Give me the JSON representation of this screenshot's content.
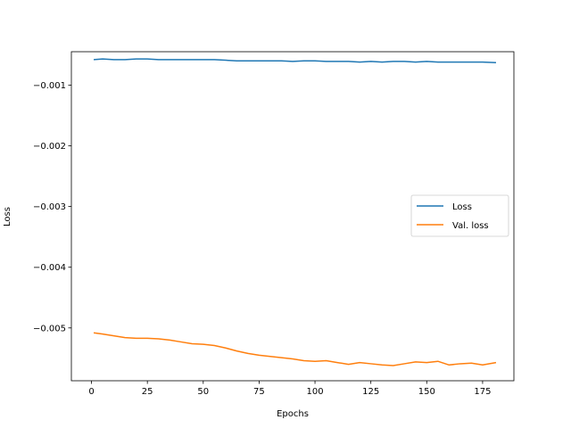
{
  "chart_data": {
    "type": "line",
    "title": "",
    "xlabel": "Epochs",
    "ylabel": "Loss",
    "xlim": [
      -9,
      189
    ],
    "ylim": [
      -0.00587,
      -0.00045
    ],
    "xticks": [
      0,
      25,
      50,
      75,
      100,
      125,
      150,
      175
    ],
    "yticks": [
      -0.005,
      -0.004,
      -0.003,
      -0.002,
      -0.001
    ],
    "ytick_labels": [
      "−0.005",
      "−0.004",
      "−0.003",
      "−0.002",
      "−0.001"
    ],
    "grid": false,
    "legend": {
      "placement": "center-right"
    },
    "series": [
      {
        "name": "Loss",
        "color": "#1f77b4",
        "x": [
          1,
          5,
          10,
          15,
          20,
          25,
          30,
          35,
          40,
          45,
          50,
          55,
          60,
          65,
          70,
          75,
          80,
          85,
          90,
          95,
          100,
          105,
          110,
          115,
          120,
          125,
          130,
          135,
          140,
          145,
          150,
          155,
          160,
          165,
          170,
          175,
          181
        ],
        "values": [
          -0.00058,
          -0.00057,
          -0.00058,
          -0.00058,
          -0.00057,
          -0.00057,
          -0.00058,
          -0.00058,
          -0.00058,
          -0.00058,
          -0.00058,
          -0.00058,
          -0.00059,
          -0.0006,
          -0.0006,
          -0.0006,
          -0.0006,
          -0.0006,
          -0.00061,
          -0.0006,
          -0.0006,
          -0.00061,
          -0.00061,
          -0.00061,
          -0.00062,
          -0.00061,
          -0.00062,
          -0.00061,
          -0.00061,
          -0.00062,
          -0.00061,
          -0.00062,
          -0.00062,
          -0.00062,
          -0.00062,
          -0.00062,
          -0.00063
        ]
      },
      {
        "name": "Val. loss",
        "color": "#ff7f0e",
        "x": [
          1,
          5,
          10,
          15,
          20,
          25,
          30,
          35,
          40,
          45,
          50,
          55,
          60,
          65,
          70,
          75,
          80,
          85,
          90,
          95,
          100,
          105,
          110,
          115,
          120,
          125,
          130,
          135,
          140,
          145,
          150,
          155,
          160,
          165,
          170,
          175,
          181
        ],
        "values": [
          -0.00508,
          -0.0051,
          -0.00513,
          -0.00516,
          -0.00517,
          -0.00517,
          -0.00518,
          -0.0052,
          -0.00523,
          -0.00526,
          -0.00527,
          -0.00529,
          -0.00533,
          -0.00538,
          -0.00542,
          -0.00545,
          -0.00547,
          -0.00549,
          -0.00551,
          -0.00554,
          -0.00555,
          -0.00554,
          -0.00557,
          -0.0056,
          -0.00557,
          -0.00559,
          -0.00561,
          -0.00562,
          -0.00559,
          -0.00556,
          -0.00557,
          -0.00555,
          -0.00561,
          -0.00559,
          -0.00558,
          -0.00561,
          -0.00557
        ]
      }
    ]
  }
}
